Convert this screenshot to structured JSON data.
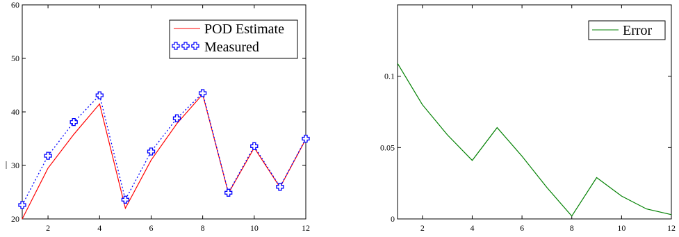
{
  "chart_data": [
    {
      "type": "line",
      "title": "",
      "xlabel": "",
      "ylabel": "",
      "xlim": [
        1,
        12
      ],
      "ylim": [
        20,
        60
      ],
      "x_ticks": [
        "2",
        "4",
        "6",
        "8",
        "10",
        "12"
      ],
      "y_ticks": [
        "20",
        "30",
        "40",
        "50",
        "60"
      ],
      "grid": false,
      "legend_position": "top-right",
      "series": [
        {
          "name": "POD Estimate",
          "color": "#ff0000",
          "style": "solid",
          "x": [
            1,
            2,
            3,
            4,
            5,
            6,
            7,
            8,
            9,
            10,
            11,
            12
          ],
          "values": [
            20.0,
            29.5,
            35.8,
            41.5,
            22.0,
            31.0,
            37.8,
            43.3,
            24.8,
            33.3,
            25.9,
            34.9
          ]
        },
        {
          "name": "Measured",
          "color": "#0000ff",
          "style": "dotted-markers",
          "x": [
            1,
            2,
            3,
            4,
            5,
            6,
            7,
            8,
            9,
            10,
            11,
            12
          ],
          "values": [
            22.6,
            31.8,
            38.1,
            43.1,
            23.6,
            32.6,
            38.8,
            43.5,
            24.9,
            33.6,
            26.0,
            35.0
          ]
        }
      ]
    },
    {
      "type": "line",
      "title": "",
      "xlabel": "",
      "ylabel": "",
      "xlim": [
        1,
        12
      ],
      "ylim": [
        0,
        0.15
      ],
      "x_ticks": [
        "2",
        "4",
        "6",
        "8",
        "10",
        "12"
      ],
      "y_ticks": [
        "0",
        "0.05",
        "0.1"
      ],
      "grid": false,
      "legend_position": "top-right",
      "series": [
        {
          "name": "Error",
          "color": "#008000",
          "style": "solid",
          "x": [
            1,
            2,
            3,
            4,
            5,
            6,
            7,
            8,
            9,
            10,
            11,
            12
          ],
          "values": [
            0.109,
            0.08,
            0.059,
            0.041,
            0.064,
            0.044,
            0.022,
            0.002,
            0.029,
            0.016,
            0.007,
            0.003
          ]
        }
      ]
    }
  ]
}
